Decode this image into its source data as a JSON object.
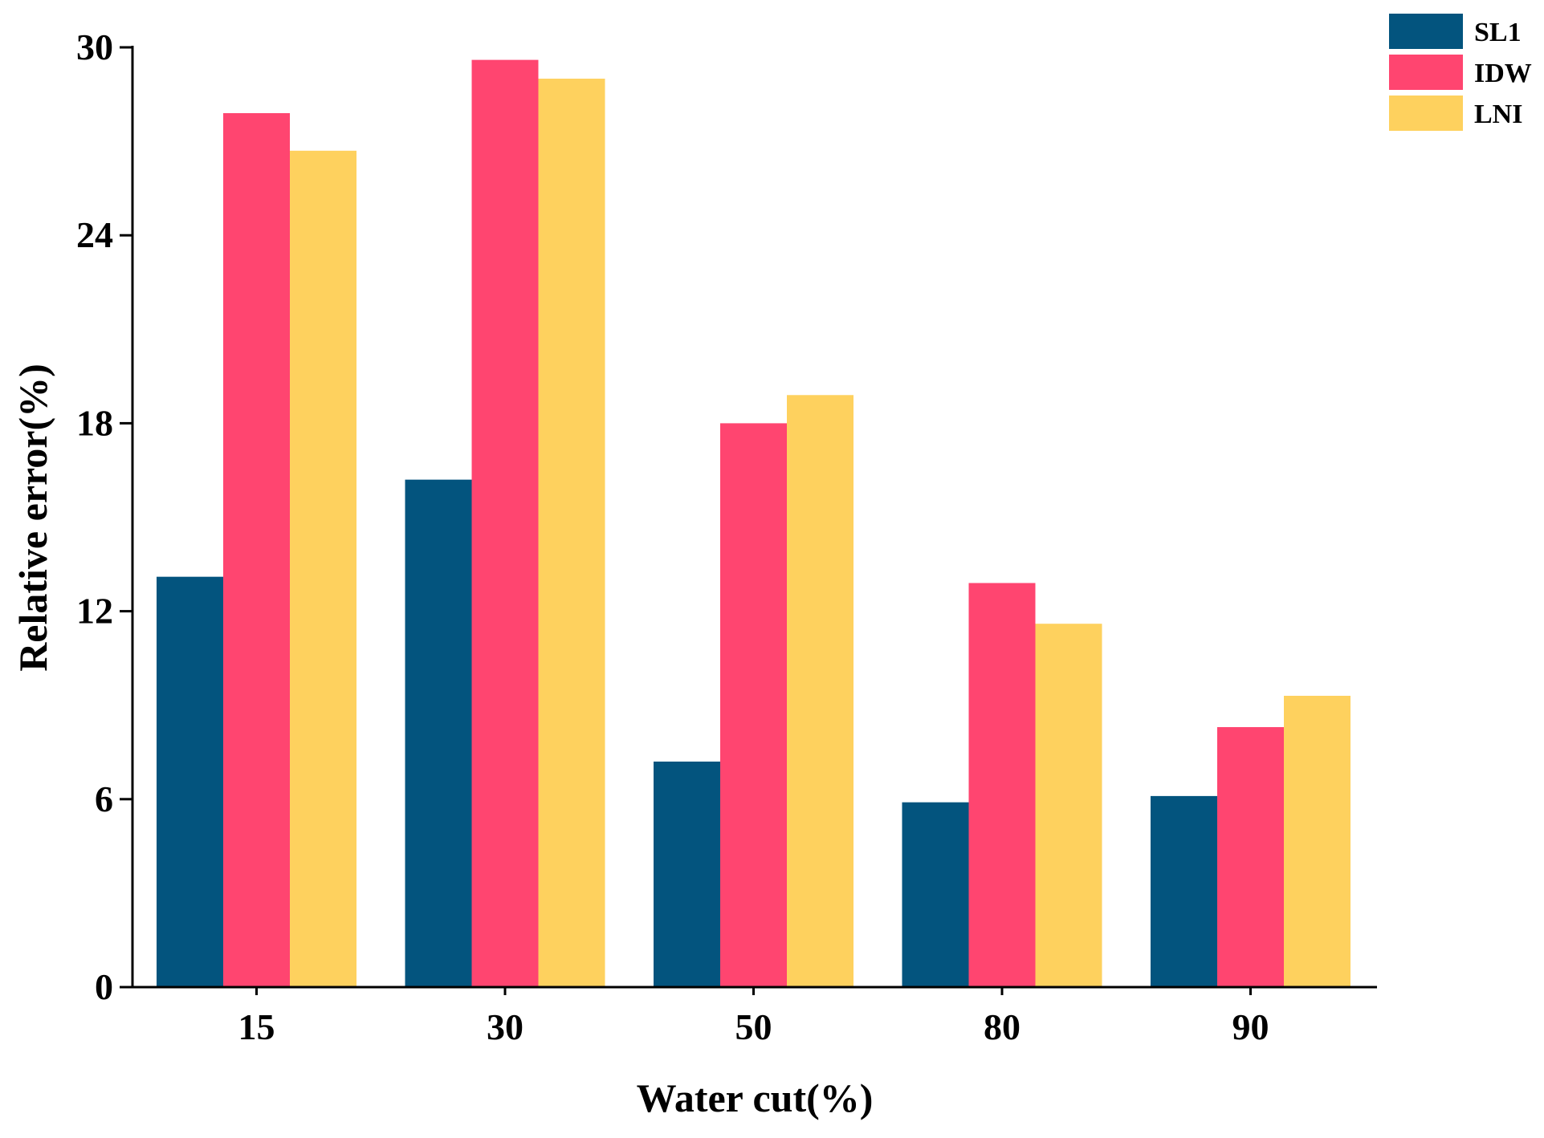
{
  "chart_data": {
    "type": "bar",
    "title": "",
    "xlabel": "Water cut(%)",
    "ylabel": "Relative error(%)",
    "categories": [
      "15",
      "30",
      "50",
      "80",
      "90"
    ],
    "series": [
      {
        "name": "SL1",
        "color": "#03547e",
        "values": [
          13.1,
          16.2,
          7.2,
          5.9,
          6.1
        ]
      },
      {
        "name": "IDW",
        "color": "#ff4570",
        "values": [
          27.9,
          29.6,
          18.0,
          12.9,
          8.3
        ]
      },
      {
        "name": "LNI",
        "color": "#fed15e",
        "values": [
          26.7,
          29.0,
          18.9,
          11.6,
          9.3
        ]
      }
    ],
    "ylim": [
      0,
      30
    ],
    "yticks": [
      "0",
      "6",
      "12",
      "18",
      "24",
      "30"
    ],
    "grid": false,
    "legend_position": "top-right"
  }
}
